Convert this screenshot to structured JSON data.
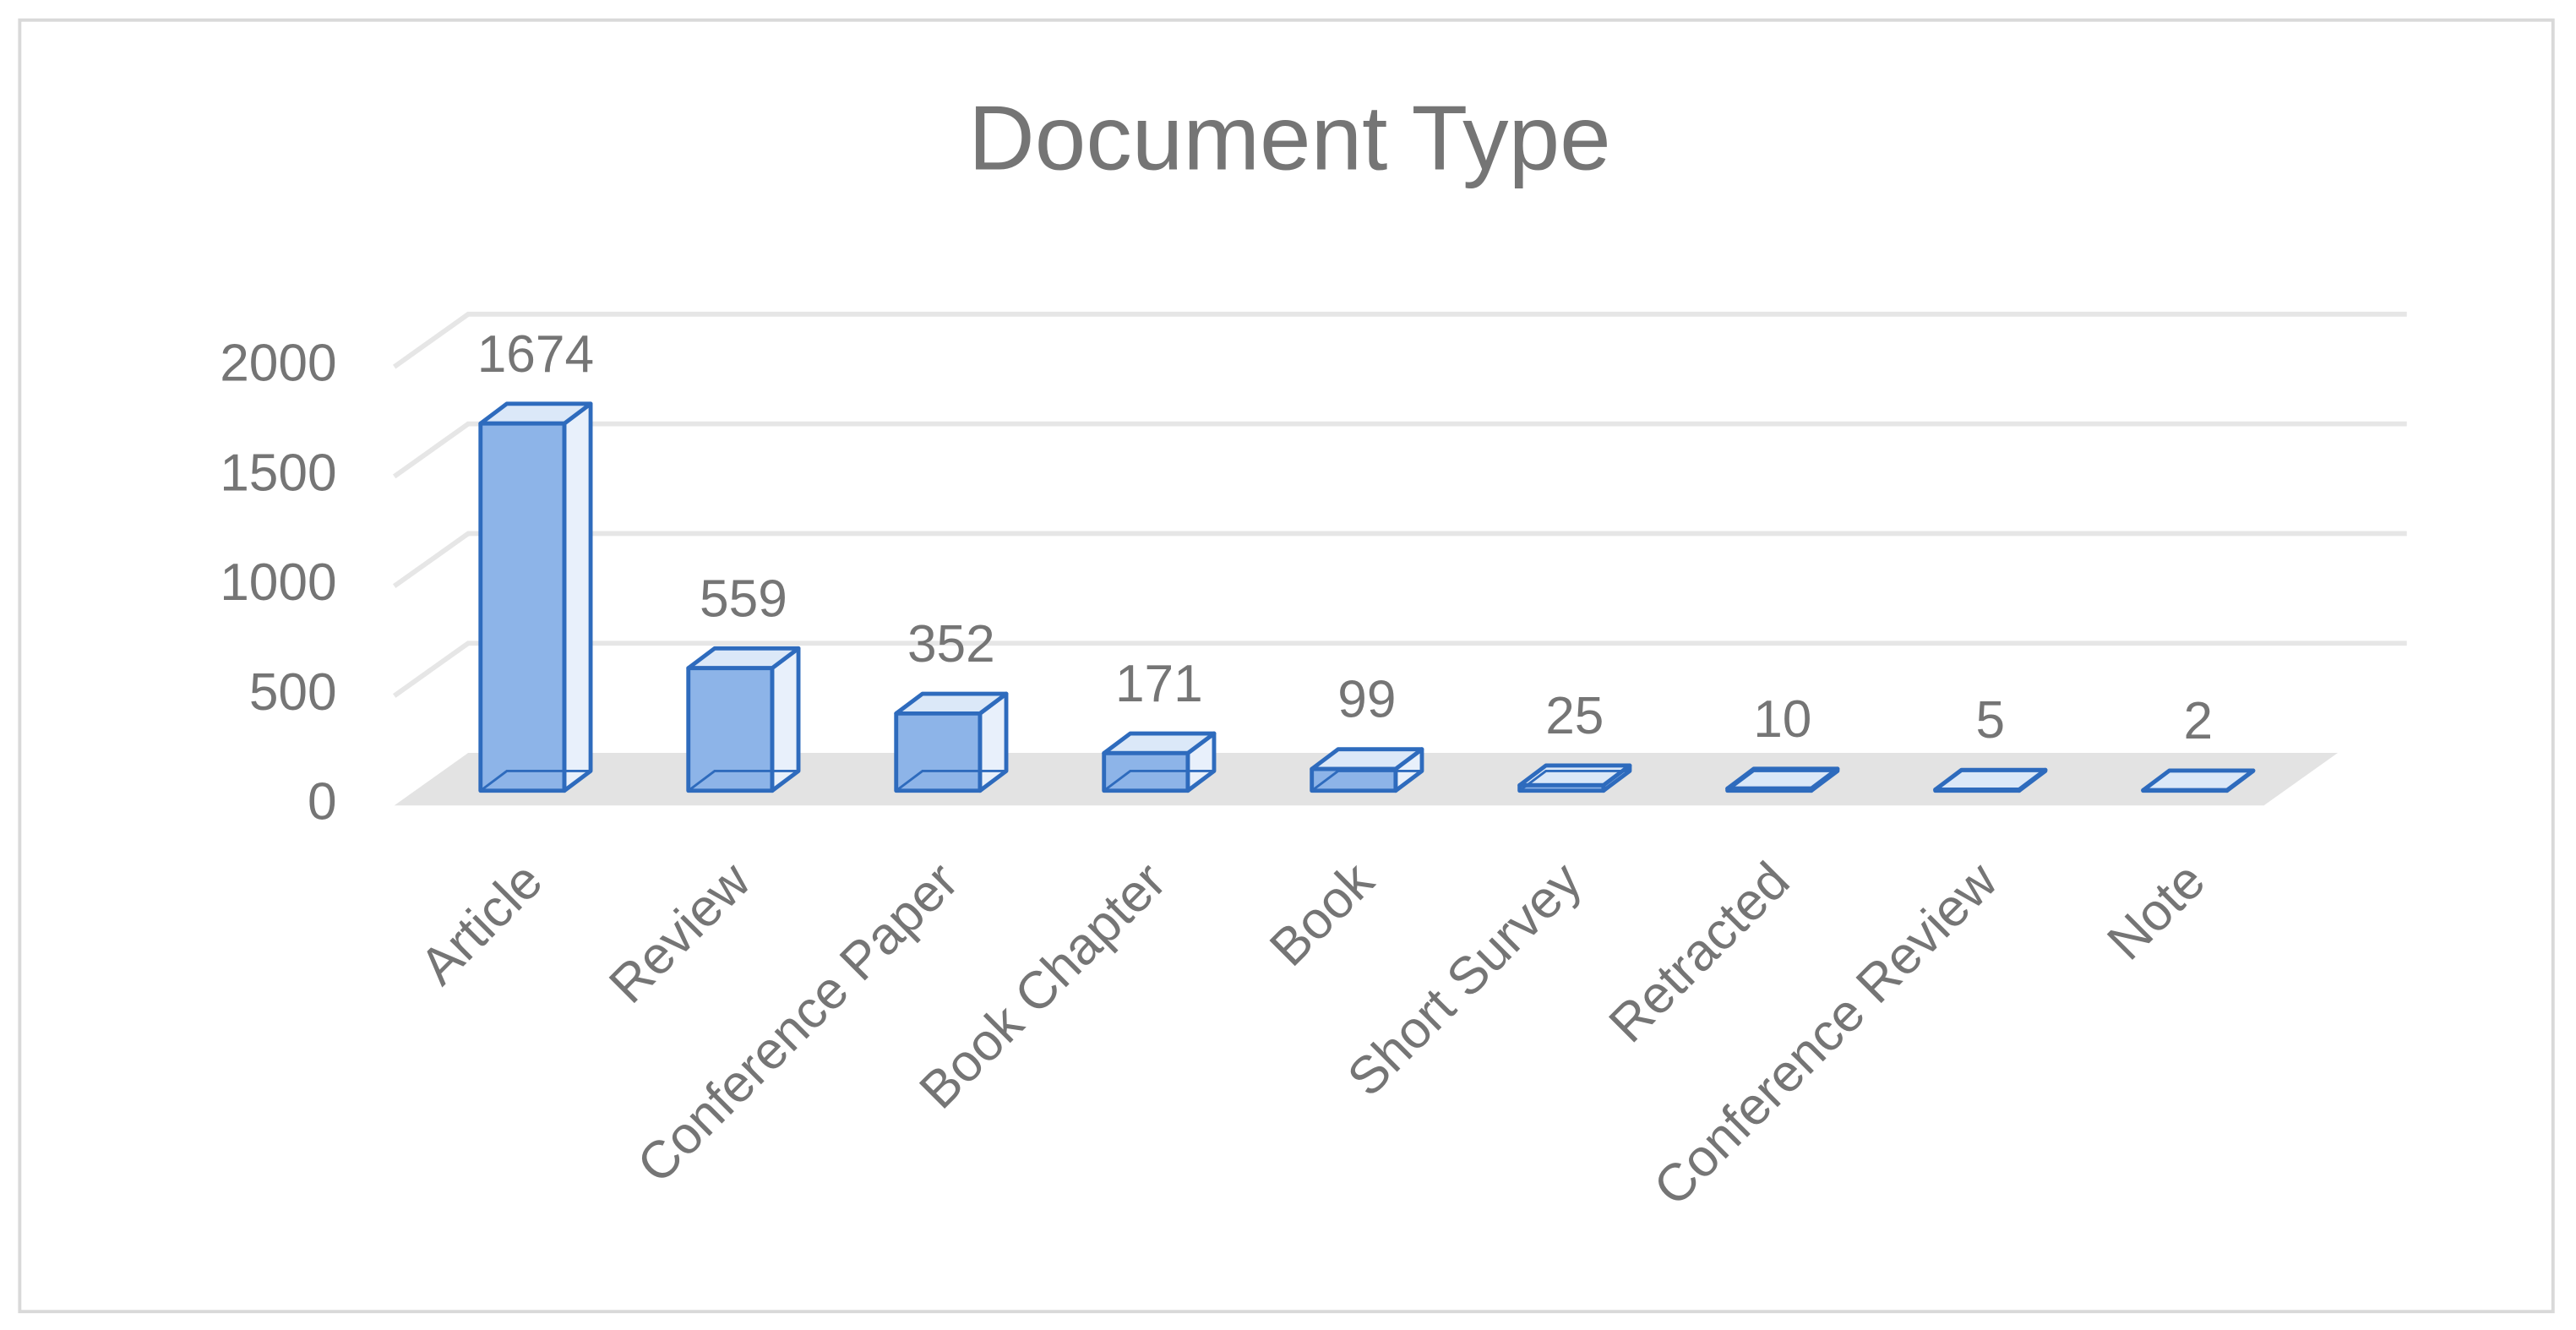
{
  "chart_data": {
    "type": "bar3d",
    "title": "Document Type",
    "categories": [
      "Article",
      "Review",
      "Conference Paper",
      "Book Chapter",
      "Book",
      "Short Survey",
      "Retracted",
      "Conference Review",
      "Note"
    ],
    "values": [
      1674,
      559,
      352,
      171,
      99,
      25,
      10,
      5,
      2
    ],
    "color": "#8db4e8",
    "edge_color": "#2e6bbd",
    "ylim": [
      0,
      2000
    ],
    "yticks": [
      0,
      500,
      1000,
      1500,
      2000
    ],
    "grid": true
  }
}
